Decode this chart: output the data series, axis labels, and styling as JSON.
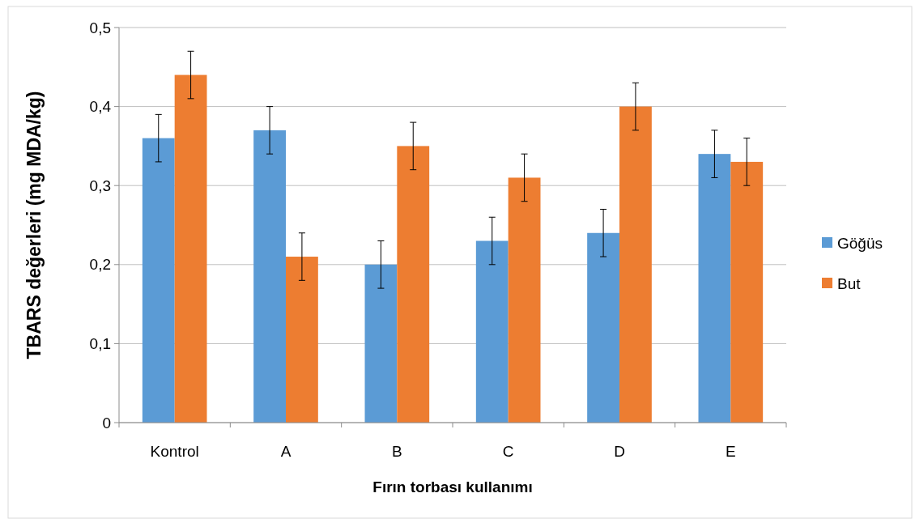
{
  "chart_data": {
    "type": "bar",
    "xlabel": "Fırın torbası kullanımı",
    "ylabel": "TBARS değerleri (mg MDA/kg)",
    "categories": [
      "Kontrol",
      "A",
      "B",
      "C",
      "D",
      "E"
    ],
    "series": [
      {
        "name": "Göğüs",
        "color": "#5b9bd5",
        "values": [
          0.36,
          0.37,
          0.2,
          0.23,
          0.24,
          0.34
        ],
        "errors": [
          0.03,
          0.03,
          0.03,
          0.03,
          0.03,
          0.03
        ]
      },
      {
        "name": "But",
        "color": "#ed7d31",
        "values": [
          0.44,
          0.21,
          0.35,
          0.31,
          0.4,
          0.33
        ],
        "errors": [
          0.03,
          0.03,
          0.03,
          0.03,
          0.03,
          0.03
        ]
      }
    ],
    "ylim": [
      0,
      0.5
    ],
    "yticks": [
      {
        "value": 0,
        "label": "0"
      },
      {
        "value": 0.1,
        "label": "0,1"
      },
      {
        "value": 0.2,
        "label": "0,2"
      },
      {
        "value": 0.3,
        "label": "0,3"
      },
      {
        "value": 0.4,
        "label": "0,4"
      },
      {
        "value": 0.5,
        "label": "0,5"
      }
    ],
    "grid": "y",
    "legend": "right"
  }
}
